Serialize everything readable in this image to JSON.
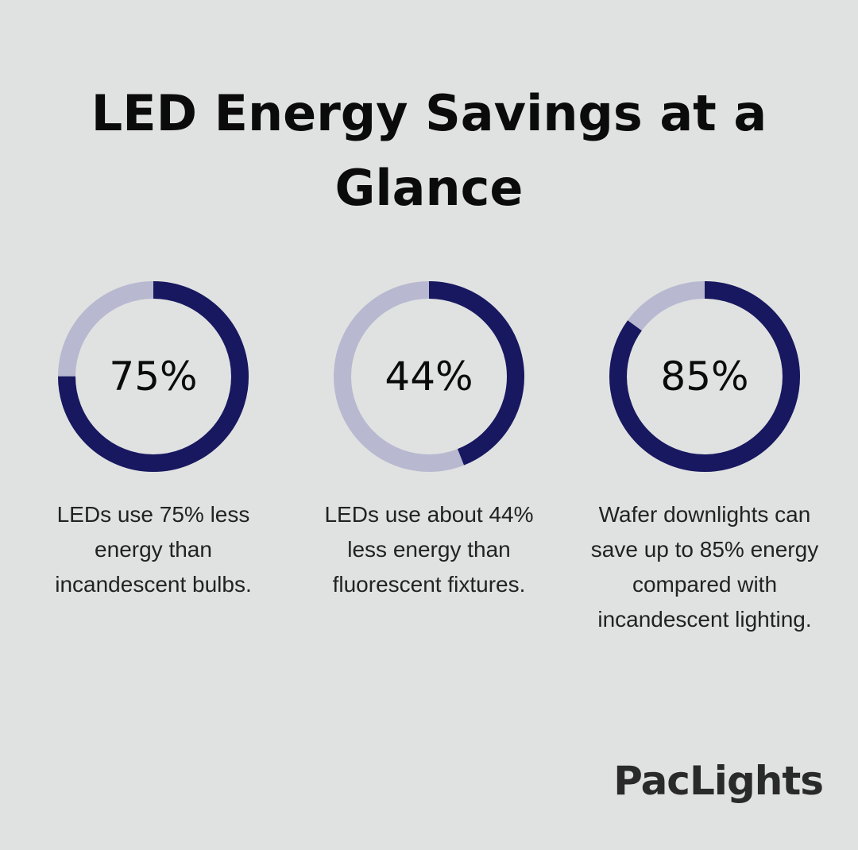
{
  "title": "LED Energy Savings at a Glance",
  "brand": "PacLights",
  "colors": {
    "filled": "#181860",
    "track": "#b8b9d0",
    "background": "#e0e2e1"
  },
  "chart_data": [
    {
      "type": "pie",
      "value": 75,
      "label": "75%",
      "description": "LEDs use 75% less energy than incandescent bulbs."
    },
    {
      "type": "pie",
      "value": 44,
      "label": "44%",
      "description": "LEDs use about 44% less energy than fluorescent fixtures."
    },
    {
      "type": "pie",
      "value": 85,
      "label": "85%",
      "description": "Wafer downlights can save up to 85% energy compared with incandescent lighting."
    }
  ]
}
